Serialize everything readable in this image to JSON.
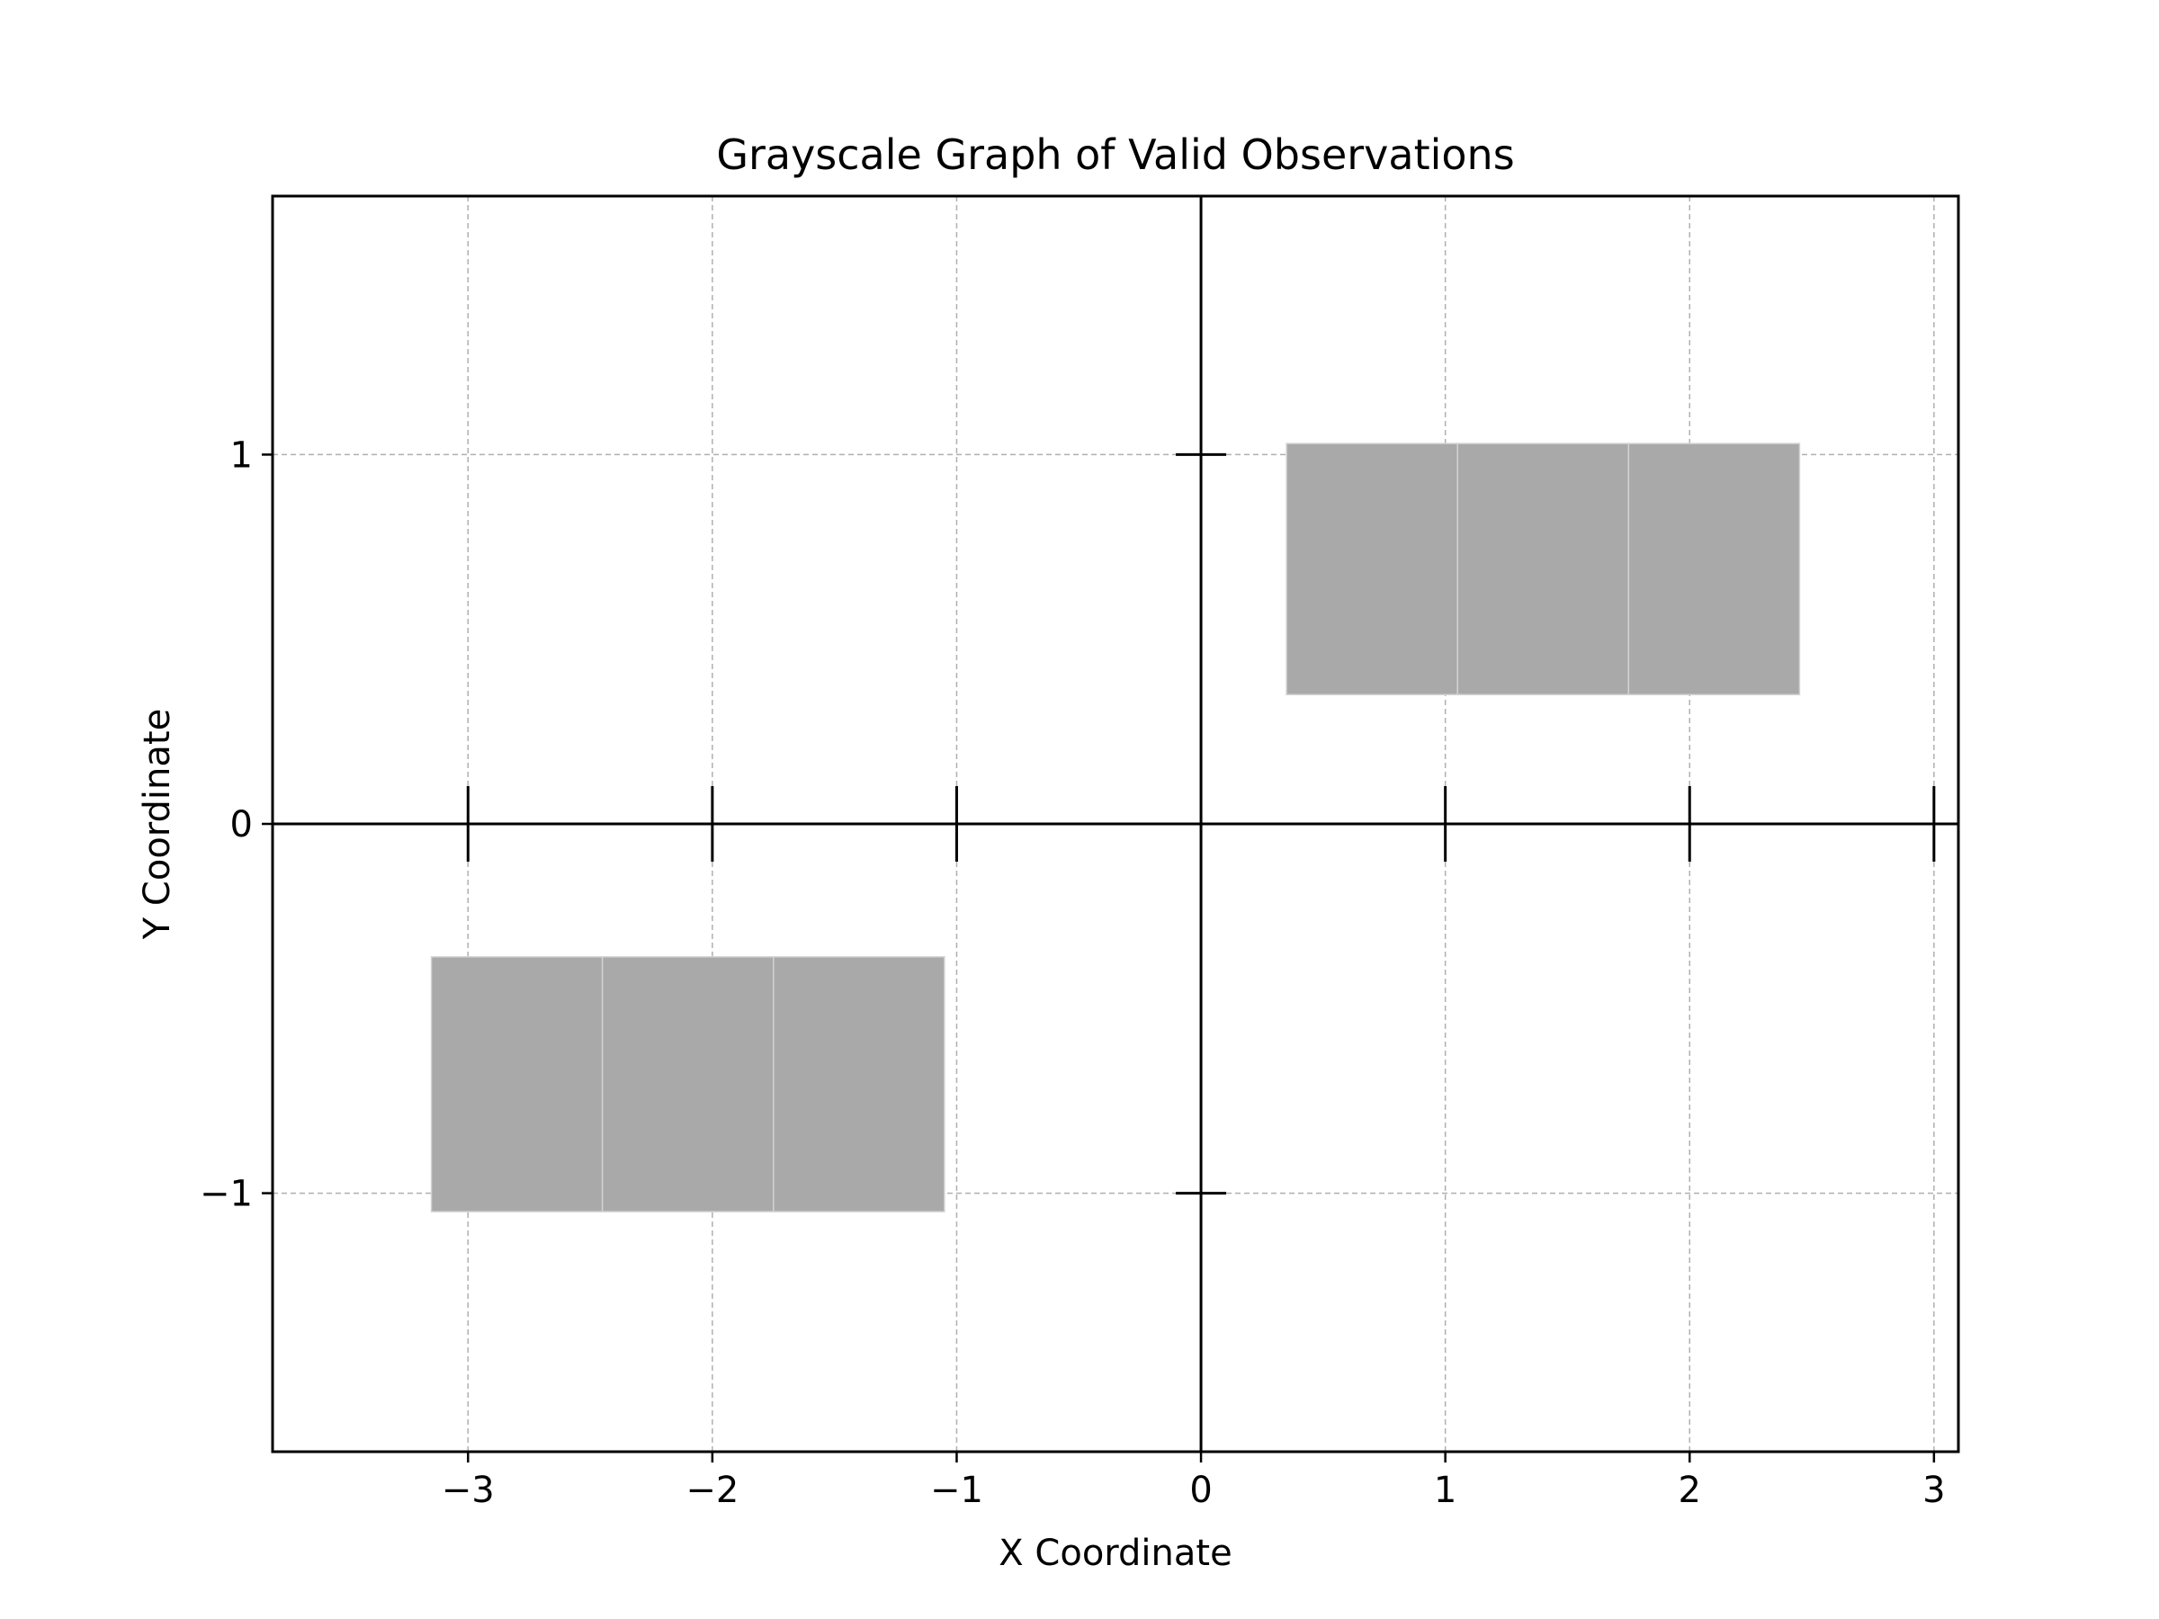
{
  "chart_data": {
    "type": "bar",
    "title": "Grayscale Graph of Valid Observations",
    "xlabel": "X Coordinate",
    "ylabel": "Y Coordinate",
    "xlim": [
      -3.8,
      3.1
    ],
    "ylim": [
      -1.7,
      1.7
    ],
    "xticks": [
      -3,
      -2,
      -1,
      0,
      1,
      2,
      3
    ],
    "yticks": [
      -1,
      0,
      1
    ],
    "xtick_labels": [
      "−3",
      "−2",
      "−1",
      "0",
      "1",
      "2",
      "3"
    ],
    "ytick_labels": [
      "−1",
      "0",
      "1"
    ],
    "grid": true,
    "axis_lines_through_origin": true,
    "cross_ticks_x": [
      -3,
      -2,
      -1,
      1,
      2,
      3
    ],
    "cross_ticks_y": [
      -1,
      1
    ],
    "bar_color": "#a9a9a9",
    "bar_edge_color": "#d3d3d3",
    "grid_color": "#b0b0b0",
    "bars": [
      {
        "x_start": 0.35,
        "x_end": 1.05,
        "y_bottom": 0.35,
        "y_top": 1.03
      },
      {
        "x_start": 1.05,
        "x_end": 1.75,
        "y_bottom": 0.35,
        "y_top": 1.03
      },
      {
        "x_start": 1.75,
        "x_end": 2.45,
        "y_bottom": 0.35,
        "y_top": 1.03
      },
      {
        "x_start": -3.15,
        "x_end": -2.45,
        "y_bottom": -1.05,
        "y_top": -0.36
      },
      {
        "x_start": -2.45,
        "x_end": -1.75,
        "y_bottom": -1.05,
        "y_top": -0.36
      },
      {
        "x_start": -1.75,
        "x_end": -1.05,
        "y_bottom": -1.05,
        "y_top": -0.36
      }
    ]
  }
}
